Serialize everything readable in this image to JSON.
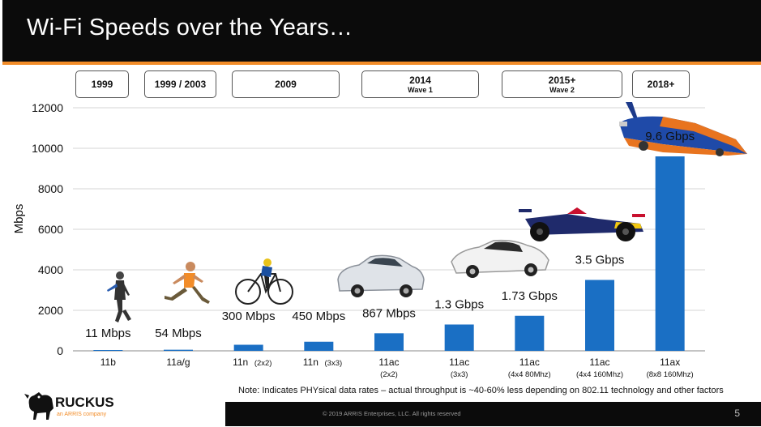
{
  "slide": {
    "title": "Wi-Fi Speeds over the Years…",
    "note": "Note: Indicates PHYsical data rates – actual throughput is ~40-60% less depending on 802.11 technology and other factors",
    "copyright": "© 2019 ARRIS Enterprises, LLC. All rights reserved",
    "page_number": "5",
    "logo": {
      "name": "RUCKUS",
      "tagline": "an ARRIS company"
    },
    "colors": {
      "title_bar": "#0b0b0b",
      "accent": "#f28c28",
      "bar": "#1a6fc4"
    }
  },
  "eras": [
    {
      "label": "1999",
      "sub": ""
    },
    {
      "label": "1999 / 2003",
      "sub": ""
    },
    {
      "label": "2009",
      "sub": ""
    },
    {
      "label": "2014",
      "sub": "Wave 1"
    },
    {
      "label": "2015+",
      "sub": "Wave 2"
    },
    {
      "label": "2018+",
      "sub": ""
    }
  ],
  "chart_data": {
    "type": "bar",
    "ylabel": "Mbps",
    "ylim": [
      0,
      12000
    ],
    "yticks": [
      "0",
      "2000",
      "4000",
      "6000",
      "8000",
      "10000",
      "12000"
    ],
    "categories": [
      {
        "name": "11b",
        "sub": ""
      },
      {
        "name": "11a/g",
        "sub": ""
      },
      {
        "name": "11n",
        "sub": "(2x2)"
      },
      {
        "name": "11n",
        "sub": "(3x3)"
      },
      {
        "name": "11ac",
        "sub": "(2x2)"
      },
      {
        "name": "11ac",
        "sub": "(3x3)"
      },
      {
        "name": "11ac",
        "sub": "(4x4 80Mhz)"
      },
      {
        "name": "11ac",
        "sub": "(4x4 160Mhz)"
      },
      {
        "name": "11ax",
        "sub": "(8x8 160Mhz)"
      }
    ],
    "values": [
      11,
      54,
      300,
      450,
      867,
      1300,
      1730,
      3500,
      9600
    ],
    "data_labels": [
      "11 Mbps",
      "54 Mbps",
      "300 Mbps",
      "450 Mbps",
      "867 Mbps",
      "1.3 Gbps",
      "1.73 Gbps",
      "3.5 Gbps",
      "9.6 Gbps"
    ],
    "grid": true,
    "illustrations": [
      "walking-man-icon",
      "running-man-icon",
      "cyclist-icon",
      "sedan-car-icon",
      "sports-car-icon",
      "race-car-icon",
      "rocket-car-icon"
    ]
  }
}
